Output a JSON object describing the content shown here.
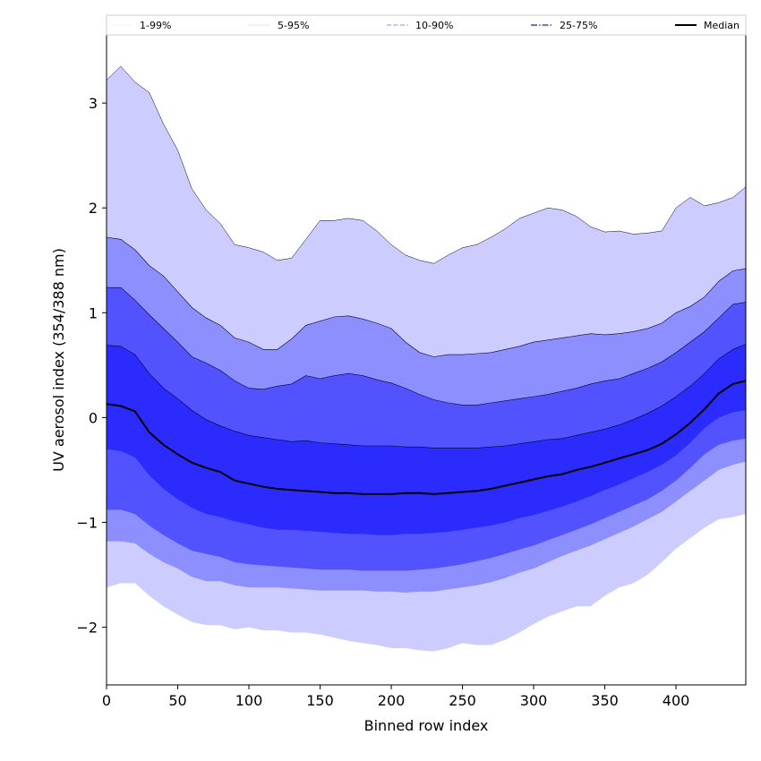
{
  "chart_data": {
    "type": "area",
    "xlabel": "Binned row index",
    "ylabel": "UV aerosol index (354/388 nm)",
    "xlim": [
      0,
      449
    ],
    "ylim": [
      -2.55,
      3.65
    ],
    "x_ticks": [
      0,
      50,
      100,
      150,
      200,
      250,
      300,
      350,
      400
    ],
    "y_ticks": [
      -2,
      -1,
      0,
      1,
      2,
      3
    ],
    "x_tick_labels": [
      "0",
      "50",
      "100",
      "150",
      "200",
      "250",
      "300",
      "350",
      "400"
    ],
    "y_tick_labels": [
      "−2",
      "−1",
      "0",
      "1",
      "2",
      "3"
    ],
    "legend_position": "top (horizontal, above plot)",
    "legend": [
      {
        "label": "1-99%",
        "color": "#dcdcf8",
        "style": "solid"
      },
      {
        "label": "5-95%",
        "color": "#aaaaee",
        "style": "dotted"
      },
      {
        "label": "10-90%",
        "color": "#8888ee",
        "style": "dashed"
      },
      {
        "label": "25-75%",
        "color": "#4444dd",
        "style": "dashdot"
      },
      {
        "label": "Median",
        "color": "#000000",
        "style": "solid"
      }
    ],
    "x": [
      0,
      10,
      20,
      30,
      40,
      50,
      60,
      70,
      80,
      90,
      100,
      110,
      120,
      130,
      140,
      150,
      160,
      170,
      180,
      190,
      200,
      210,
      220,
      230,
      240,
      250,
      260,
      270,
      280,
      290,
      300,
      310,
      320,
      330,
      340,
      350,
      360,
      370,
      380,
      390,
      400,
      410,
      420,
      430,
      440,
      449
    ],
    "bands": [
      {
        "name": "1-99%",
        "fill": "#cccdfe",
        "upper": [
          3.22,
          3.35,
          3.2,
          3.1,
          2.8,
          2.55,
          2.18,
          1.98,
          1.85,
          1.65,
          1.62,
          1.58,
          1.5,
          1.52,
          1.7,
          1.88,
          1.88,
          1.9,
          1.88,
          1.78,
          1.65,
          1.55,
          1.5,
          1.47,
          1.55,
          1.62,
          1.65,
          1.72,
          1.8,
          1.9,
          1.95,
          2.0,
          1.98,
          1.92,
          1.82,
          1.77,
          1.78,
          1.75,
          1.76,
          1.78,
          2.0,
          2.1,
          2.02,
          2.05,
          2.1,
          2.2
        ],
        "lower": [
          -1.62,
          -1.58,
          -1.58,
          -1.7,
          -1.8,
          -1.88,
          -1.95,
          -1.98,
          -1.98,
          -2.02,
          -2.0,
          -2.03,
          -2.03,
          -2.05,
          -2.05,
          -2.07,
          -2.1,
          -2.13,
          -2.15,
          -2.17,
          -2.2,
          -2.2,
          -2.22,
          -2.23,
          -2.2,
          -2.15,
          -2.17,
          -2.17,
          -2.12,
          -2.05,
          -1.97,
          -1.9,
          -1.85,
          -1.8,
          -1.8,
          -1.7,
          -1.62,
          -1.58,
          -1.5,
          -1.38,
          -1.25,
          -1.15,
          -1.05,
          -0.97,
          -0.95,
          -0.92
        ]
      },
      {
        "name": "5-95%",
        "fill": "#8e8ffe",
        "upper": [
          1.72,
          1.7,
          1.6,
          1.45,
          1.35,
          1.2,
          1.05,
          0.95,
          0.88,
          0.76,
          0.72,
          0.65,
          0.65,
          0.75,
          0.88,
          0.92,
          0.96,
          0.97,
          0.94,
          0.9,
          0.85,
          0.72,
          0.62,
          0.58,
          0.6,
          0.6,
          0.61,
          0.62,
          0.65,
          0.68,
          0.72,
          0.74,
          0.76,
          0.78,
          0.8,
          0.79,
          0.8,
          0.82,
          0.85,
          0.9,
          1.0,
          1.06,
          1.15,
          1.3,
          1.4,
          1.42
        ],
        "lower": [
          -1.18,
          -1.18,
          -1.2,
          -1.3,
          -1.38,
          -1.44,
          -1.52,
          -1.56,
          -1.56,
          -1.6,
          -1.62,
          -1.62,
          -1.62,
          -1.63,
          -1.64,
          -1.65,
          -1.65,
          -1.65,
          -1.65,
          -1.66,
          -1.66,
          -1.67,
          -1.66,
          -1.66,
          -1.64,
          -1.62,
          -1.6,
          -1.57,
          -1.53,
          -1.48,
          -1.44,
          -1.38,
          -1.32,
          -1.27,
          -1.22,
          -1.16,
          -1.1,
          -1.04,
          -0.97,
          -0.9,
          -0.8,
          -0.7,
          -0.6,
          -0.5,
          -0.45,
          -0.42
        ]
      },
      {
        "name": "10-90%",
        "fill": "#5252fe",
        "upper": [
          1.24,
          1.24,
          1.12,
          0.98,
          0.85,
          0.72,
          0.58,
          0.52,
          0.45,
          0.35,
          0.28,
          0.27,
          0.3,
          0.32,
          0.4,
          0.37,
          0.4,
          0.42,
          0.4,
          0.36,
          0.33,
          0.28,
          0.22,
          0.17,
          0.14,
          0.12,
          0.12,
          0.14,
          0.16,
          0.18,
          0.2,
          0.22,
          0.25,
          0.28,
          0.32,
          0.35,
          0.37,
          0.42,
          0.47,
          0.53,
          0.62,
          0.72,
          0.82,
          0.95,
          1.08,
          1.1
        ],
        "lower": [
          -0.88,
          -0.88,
          -0.92,
          -1.03,
          -1.12,
          -1.2,
          -1.27,
          -1.3,
          -1.33,
          -1.38,
          -1.4,
          -1.41,
          -1.42,
          -1.43,
          -1.44,
          -1.45,
          -1.45,
          -1.45,
          -1.46,
          -1.46,
          -1.46,
          -1.46,
          -1.45,
          -1.44,
          -1.42,
          -1.4,
          -1.37,
          -1.34,
          -1.3,
          -1.26,
          -1.22,
          -1.17,
          -1.12,
          -1.07,
          -1.02,
          -0.96,
          -0.9,
          -0.84,
          -0.78,
          -0.7,
          -0.6,
          -0.48,
          -0.35,
          -0.26,
          -0.22,
          -0.2
        ]
      },
      {
        "name": "25-75%",
        "fill": "#2b2bfe",
        "upper": [
          0.69,
          0.68,
          0.6,
          0.42,
          0.28,
          0.18,
          0.07,
          -0.02,
          -0.08,
          -0.13,
          -0.17,
          -0.19,
          -0.21,
          -0.23,
          -0.22,
          -0.24,
          -0.25,
          -0.26,
          -0.27,
          -0.27,
          -0.27,
          -0.28,
          -0.28,
          -0.29,
          -0.29,
          -0.29,
          -0.29,
          -0.28,
          -0.27,
          -0.25,
          -0.23,
          -0.21,
          -0.2,
          -0.17,
          -0.14,
          -0.11,
          -0.07,
          -0.02,
          0.04,
          0.11,
          0.2,
          0.3,
          0.42,
          0.56,
          0.65,
          0.7
        ],
        "lower": [
          -0.3,
          -0.32,
          -0.38,
          -0.55,
          -0.68,
          -0.78,
          -0.86,
          -0.92,
          -0.95,
          -0.99,
          -1.02,
          -1.05,
          -1.07,
          -1.07,
          -1.08,
          -1.09,
          -1.1,
          -1.11,
          -1.11,
          -1.12,
          -1.12,
          -1.11,
          -1.11,
          -1.1,
          -1.09,
          -1.07,
          -1.05,
          -1.03,
          -1.0,
          -0.96,
          -0.93,
          -0.89,
          -0.85,
          -0.8,
          -0.75,
          -0.69,
          -0.64,
          -0.58,
          -0.52,
          -0.45,
          -0.36,
          -0.24,
          -0.1,
          0.0,
          0.05,
          0.07
        ]
      }
    ],
    "series": [
      {
        "name": "Median",
        "color": "#000000",
        "values": [
          0.13,
          0.11,
          0.06,
          -0.14,
          -0.26,
          -0.35,
          -0.43,
          -0.48,
          -0.52,
          -0.6,
          -0.63,
          -0.66,
          -0.68,
          -0.69,
          -0.7,
          -0.71,
          -0.72,
          -0.72,
          -0.73,
          -0.73,
          -0.73,
          -0.72,
          -0.72,
          -0.73,
          -0.72,
          -0.71,
          -0.7,
          -0.68,
          -0.65,
          -0.62,
          -0.59,
          -0.56,
          -0.54,
          -0.5,
          -0.47,
          -0.43,
          -0.39,
          -0.35,
          -0.31,
          -0.25,
          -0.16,
          -0.05,
          0.08,
          0.23,
          0.32,
          0.35
        ]
      }
    ]
  }
}
